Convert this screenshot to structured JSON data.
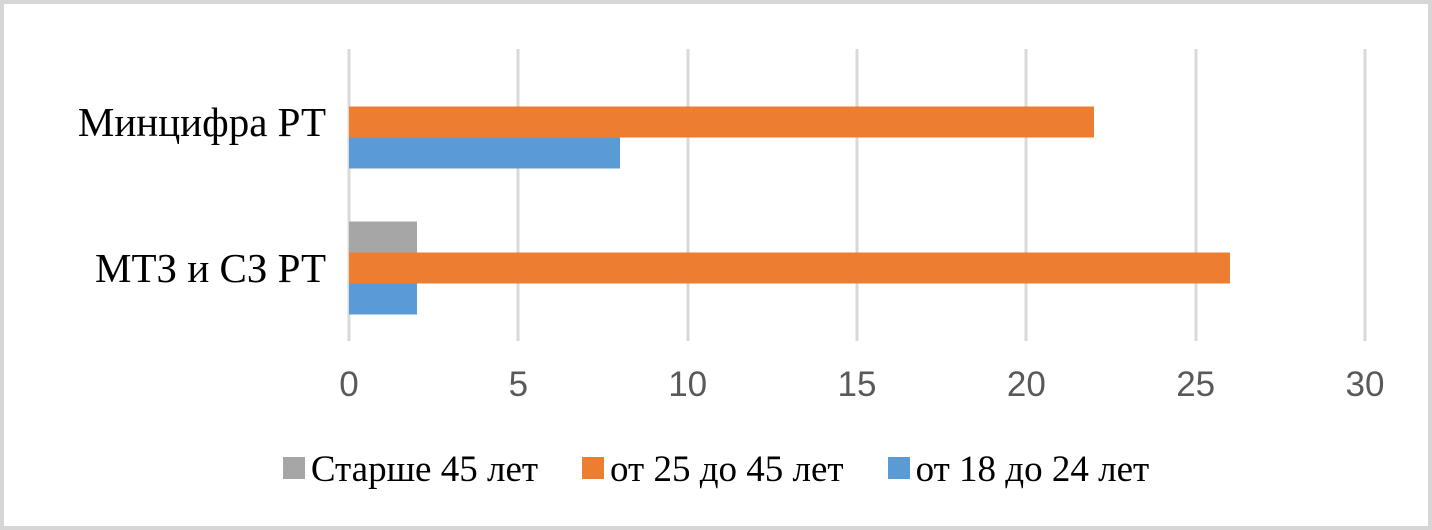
{
  "chart_data": {
    "type": "bar",
    "orientation": "horizontal",
    "title": "",
    "xlabel": "",
    "ylabel": "",
    "categories": [
      "Минцифра РТ",
      "МТЗ и СЗ РТ"
    ],
    "series": [
      {
        "name": "Старше 45 лет",
        "color": "#a6a6a6",
        "values": [
          0,
          2
        ]
      },
      {
        "name": "от 25 до 45 лет",
        "color": "#ed7d31",
        "values": [
          22,
          26
        ]
      },
      {
        "name": "от 18 до 24 лет",
        "color": "#5b9bd5",
        "values": [
          8,
          2
        ]
      }
    ],
    "xlim": [
      0,
      30
    ],
    "x_ticks": [
      0,
      5,
      10,
      15,
      20,
      25,
      30
    ],
    "grid": "vertical",
    "legend_position": "bottom",
    "colors": {
      "gridline": "#d9d9d9",
      "tick_label": "#595959",
      "category_label": "#000000",
      "background": "#ffffff",
      "border": "#d6d6d6"
    }
  }
}
